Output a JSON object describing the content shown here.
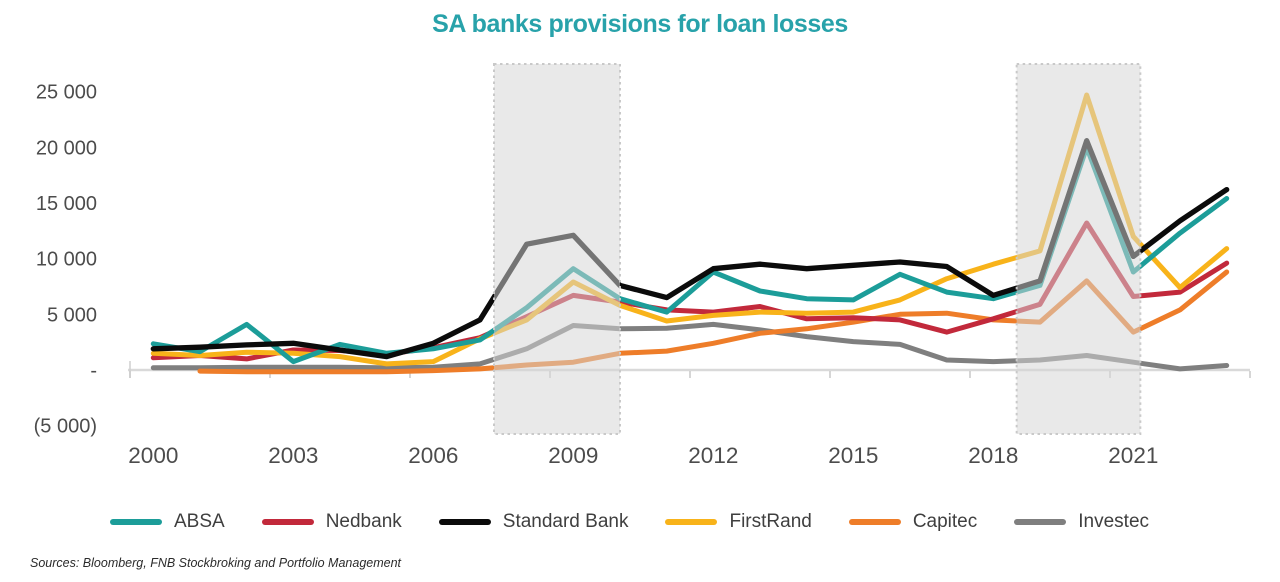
{
  "title": "SA banks provisions for loan losses",
  "source_note": "Sources: Bloomberg, FNB Stockbroking and Portfolio Management",
  "chart_data": {
    "type": "line",
    "title": "SA banks provisions for loan losses",
    "xlabel": "",
    "ylabel": "",
    "x": [
      2000,
      2001,
      2002,
      2003,
      2004,
      2005,
      2006,
      2007,
      2008,
      2009,
      2010,
      2011,
      2012,
      2013,
      2014,
      2015,
      2016,
      2017,
      2018,
      2019,
      2020,
      2021,
      2022,
      2023
    ],
    "x_tick_labels": [
      "2000",
      "2003",
      "2006",
      "2009",
      "2012",
      "2015",
      "2018",
      "2021"
    ],
    "y_ticks": [
      25000,
      20000,
      15000,
      10000,
      5000,
      0,
      -5000
    ],
    "y_tick_labels": [
      "25 000",
      "20 000",
      "15 000",
      "10 000",
      "5 000",
      "-",
      "(5 000)"
    ],
    "ylim": [
      -6000,
      27700
    ],
    "grid": false,
    "legend_position": "bottom",
    "series": [
      {
        "name": "ABSA",
        "color": "#1c9d99",
        "values": [
          2350,
          1650,
          4100,
          750,
          2300,
          1500,
          1900,
          2700,
          5600,
          9100,
          6400,
          5200,
          8800,
          7100,
          6400,
          6300,
          8600,
          7000,
          6400,
          7600,
          20000,
          8800,
          12300,
          15400
        ]
      },
      {
        "name": "Nedbank",
        "color": "#c2293b",
        "values": [
          1100,
          1300,
          1000,
          1800,
          1750,
          1400,
          2000,
          2900,
          4800,
          6700,
          6100,
          5400,
          5200,
          5700,
          4600,
          4700,
          4500,
          3400,
          4600,
          5900,
          13200,
          6600,
          7000,
          9600
        ]
      },
      {
        "name": "Standard Bank",
        "color": "#0b0b0b",
        "values": [
          1900,
          2050,
          2250,
          2400,
          1800,
          1200,
          2400,
          4500,
          11300,
          12100,
          7600,
          6500,
          9100,
          9500,
          9100,
          9400,
          9700,
          9300,
          6700,
          8000,
          20600,
          10200,
          13400,
          16200
        ]
      },
      {
        "name": "FirstRand",
        "color": "#f8b31a",
        "values": [
          1500,
          1300,
          1600,
          1500,
          1200,
          550,
          750,
          2800,
          4500,
          7900,
          5800,
          4400,
          4900,
          5200,
          5100,
          5200,
          6300,
          8200,
          9500,
          10700,
          24700,
          12000,
          7400,
          10900
        ]
      },
      {
        "name": "Capitec",
        "color": "#ee7d29",
        "values": [
          null,
          -100,
          -150,
          -150,
          -150,
          -150,
          -50,
          100,
          450,
          700,
          1500,
          1700,
          2400,
          3300,
          3700,
          4300,
          5000,
          5100,
          4500,
          4300,
          8000,
          3400,
          5400,
          8800
        ]
      },
      {
        "name": "Investec",
        "color": "#7f7f7f",
        "values": [
          200,
          200,
          250,
          250,
          250,
          200,
          250,
          550,
          1900,
          4000,
          3700,
          3750,
          4100,
          3600,
          3000,
          2550,
          2300,
          900,
          750,
          900,
          1300,
          700,
          100,
          400
        ]
      }
    ],
    "shaded_bands": [
      {
        "from": 2007.3,
        "to": 2010.0
      },
      {
        "from": 2018.5,
        "to": 2021.15
      }
    ]
  }
}
